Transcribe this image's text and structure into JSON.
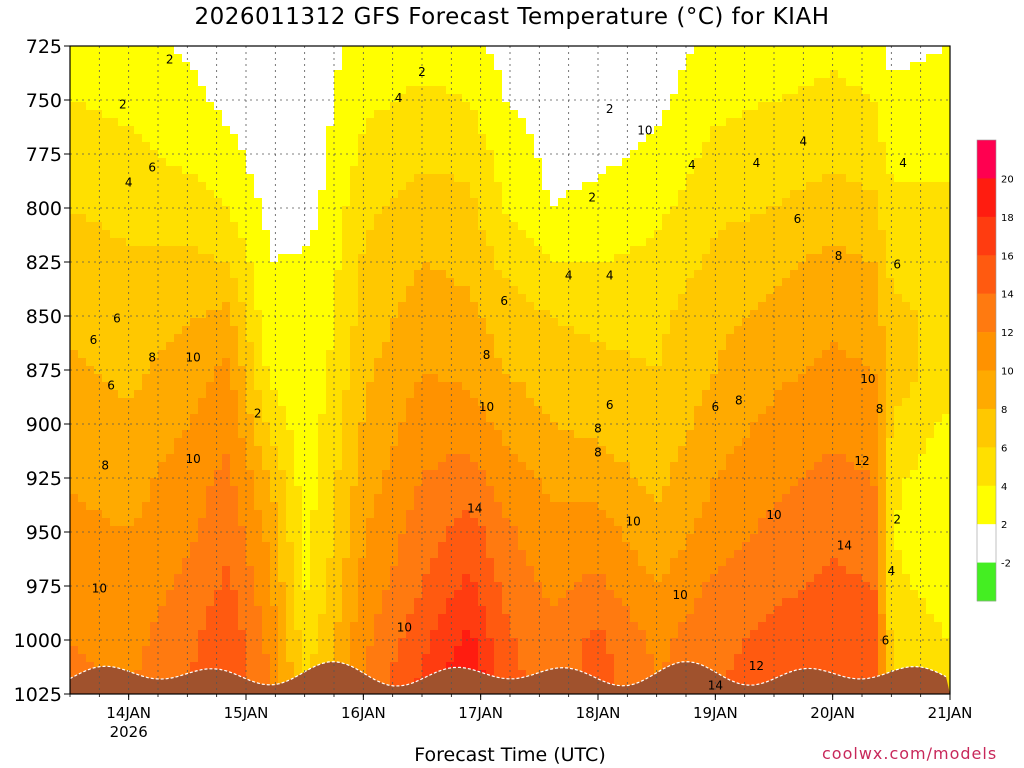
{
  "chart_data": {
    "type": "heatmap",
    "title": "2026011312 GFS Forecast Temperature (°C) for KIAH",
    "xlabel": "Forecast Time (UTC)",
    "ylabel": "Pressure (hPa)",
    "y_ticks": [
      725,
      750,
      775,
      800,
      825,
      850,
      875,
      900,
      925,
      950,
      975,
      1000,
      1025
    ],
    "ylim": [
      725,
      1025
    ],
    "x_range_days": [
      13.5,
      21.0
    ],
    "x_ticks": [
      {
        "day": 14,
        "label": "14JAN",
        "sub": "2026"
      },
      {
        "day": 15,
        "label": "15JAN",
        "sub": ""
      },
      {
        "day": 16,
        "label": "16JAN",
        "sub": ""
      },
      {
        "day": 17,
        "label": "17JAN",
        "sub": ""
      },
      {
        "day": 18,
        "label": "18JAN",
        "sub": ""
      },
      {
        "day": 19,
        "label": "19JAN",
        "sub": ""
      },
      {
        "day": 20,
        "label": "20JAN",
        "sub": ""
      },
      {
        "day": 21,
        "label": "21JAN",
        "sub": ""
      }
    ],
    "colorbar": {
      "levels": [
        -4,
        -2,
        2,
        4,
        6,
        8,
        10,
        12,
        14,
        16,
        18,
        20,
        22
      ],
      "labels": [
        "-2",
        "2",
        "4",
        "6",
        "8",
        "10",
        "12",
        "14",
        "16",
        "18",
        "20"
      ],
      "colors": [
        "#44ee22",
        "#ffffff",
        "#ffff00",
        "#ffe000",
        "#ffc800",
        "#ffaa00",
        "#ff9200",
        "#ff7a10",
        "#ff5a10",
        "#ff3c10",
        "#ff1c10",
        "#ff0050"
      ]
    },
    "temperature_profiles": [
      {
        "day": 13.5,
        "t": [
          3.5,
          4.0,
          5.0,
          6.0,
          6.8,
          7.5,
          8.3,
          9.0,
          9.8,
          10.5,
          11.2,
          12.0,
          12.5
        ]
      },
      {
        "day": 14.0,
        "t": [
          2.5,
          3.5,
          4.5,
          5.5,
          6.2,
          6.8,
          7.5,
          8.3,
          9.2,
          10.0,
          10.6,
          11.3,
          12.0
        ]
      },
      {
        "day": 14.5,
        "t": [
          1.8,
          2.5,
          3.5,
          5.0,
          6.5,
          7.8,
          9.0,
          10.0,
          11.0,
          11.5,
          12.5,
          13.5,
          14.0
        ]
      },
      {
        "day": 14.85,
        "t": [
          1.5,
          1.5,
          2.5,
          4.0,
          6.0,
          8.5,
          10.5,
          11.5,
          12.5,
          13.5,
          14.5,
          15.5,
          16.0
        ]
      },
      {
        "day": 15.2,
        "t": [
          0.0,
          0.5,
          1.0,
          1.5,
          2.0,
          2.5,
          3.5,
          5.5,
          8.0,
          9.5,
          10.5,
          11.5,
          12.0
        ]
      },
      {
        "day": 15.5,
        "t": [
          0.0,
          0.5,
          1.0,
          1.2,
          2.2,
          2.5,
          2.5,
          2.8,
          3.0,
          3.2,
          3.8,
          5.0,
          6.0
        ]
      },
      {
        "day": 15.7,
        "t": [
          1.5,
          1.8,
          2.0,
          2.5,
          3.0,
          3.5,
          4.0,
          4.5,
          5.0,
          5.5,
          6.0,
          7.0,
          8.0
        ]
      },
      {
        "day": 16.0,
        "t": [
          2.5,
          3.5,
          4.5,
          5.5,
          6.2,
          6.8,
          7.5,
          8.2,
          9.0,
          9.8,
          10.5,
          11.5,
          12.5
        ]
      },
      {
        "day": 16.5,
        "t": [
          3.0,
          4.5,
          5.5,
          7.0,
          8.0,
          9.0,
          10.0,
          11.0,
          12.0,
          13.0,
          14.0,
          15.5,
          16.5
        ]
      },
      {
        "day": 16.9,
        "t": [
          2.5,
          4.0,
          5.5,
          6.5,
          7.5,
          8.5,
          9.5,
          11.0,
          13.0,
          15.0,
          16.5,
          18.5,
          21.0
        ]
      },
      {
        "day": 17.2,
        "t": [
          1.5,
          2.0,
          3.0,
          4.0,
          5.5,
          7.0,
          8.0,
          9.5,
          11.0,
          12.5,
          13.5,
          14.5,
          15.0
        ]
      },
      {
        "day": 17.6,
        "t": [
          1.0,
          1.5,
          1.5,
          2.0,
          4.0,
          6.0,
          7.0,
          8.0,
          9.5,
          10.5,
          11.5,
          12.5,
          13.0
        ]
      },
      {
        "day": 18.0,
        "t": [
          0.5,
          1.0,
          1.5,
          2.5,
          4.0,
          5.5,
          6.5,
          7.5,
          9.0,
          11.0,
          12.5,
          14.5,
          15.0
        ]
      },
      {
        "day": 18.5,
        "t": [
          1.0,
          1.5,
          2.5,
          3.5,
          4.5,
          5.5,
          6.0,
          6.5,
          7.5,
          8.5,
          10.0,
          11.5,
          12.0
        ]
      },
      {
        "day": 19.0,
        "t": [
          2.5,
          3.5,
          4.5,
          5.5,
          6.5,
          7.5,
          8.0,
          9.0,
          10.0,
          11.0,
          12.5,
          13.5,
          14.0
        ]
      },
      {
        "day": 19.5,
        "t": [
          3.0,
          4.0,
          5.0,
          6.0,
          7.5,
          8.5,
          9.5,
          10.5,
          11.5,
          12.5,
          13.5,
          14.5,
          15.0
        ]
      },
      {
        "day": 20.0,
        "t": [
          3.5,
          4.5,
          5.5,
          7.0,
          8.5,
          9.5,
          10.5,
          11.5,
          12.5,
          13.5,
          14.5,
          15.5,
          16.0
        ]
      },
      {
        "day": 20.35,
        "t": [
          3.0,
          4.0,
          5.0,
          6.5,
          8.0,
          9.0,
          10.0,
          11.0,
          12.0,
          13.0,
          14.0,
          15.0,
          15.5
        ]
      },
      {
        "day": 20.5,
        "t": [
          1.5,
          2.5,
          3.5,
          4.5,
          5.5,
          6.5,
          7.0,
          6.0,
          4.5,
          4.0,
          4.5,
          5.5,
          6.0
        ]
      },
      {
        "day": 21.0,
        "t": [
          2.0,
          3.0,
          3.5,
          4.5,
          5.0,
          5.5,
          5.0,
          3.5,
          2.5,
          2.5,
          3.0,
          4.0,
          4.5
        ]
      }
    ],
    "contour_labels": [
      {
        "text": "2",
        "day": 14.35,
        "p": 733
      },
      {
        "text": "2",
        "day": 13.95,
        "p": 754
      },
      {
        "text": "6",
        "day": 14.2,
        "p": 783
      },
      {
        "text": "4",
        "day": 14.0,
        "p": 790
      },
      {
        "text": "2",
        "day": 16.5,
        "p": 739
      },
      {
        "text": "4",
        "day": 16.3,
        "p": 751
      },
      {
        "text": "2",
        "day": 18.1,
        "p": 756
      },
      {
        "text": "10",
        "day": 18.4,
        "p": 766
      },
      {
        "text": "2",
        "day": 15.1,
        "p": 897
      },
      {
        "text": "6",
        "day": 13.7,
        "p": 863
      },
      {
        "text": "6",
        "day": 13.9,
        "p": 853
      },
      {
        "text": "8",
        "day": 14.2,
        "p": 871
      },
      {
        "text": "10",
        "day": 14.55,
        "p": 871
      },
      {
        "text": "6",
        "day": 13.85,
        "p": 884
      },
      {
        "text": "8",
        "day": 13.8,
        "p": 921
      },
      {
        "text": "10",
        "day": 14.55,
        "p": 918
      },
      {
        "text": "10",
        "day": 13.75,
        "p": 978
      },
      {
        "text": "10",
        "day": 16.35,
        "p": 996
      },
      {
        "text": "6",
        "day": 17.2,
        "p": 845
      },
      {
        "text": "8",
        "day": 17.05,
        "p": 870
      },
      {
        "text": "10",
        "day": 17.05,
        "p": 894
      },
      {
        "text": "14",
        "day": 16.95,
        "p": 941
      },
      {
        "text": "8",
        "day": 18.0,
        "p": 904
      },
      {
        "text": "8",
        "day": 18.0,
        "p": 915
      },
      {
        "text": "6",
        "day": 18.1,
        "p": 893
      },
      {
        "text": "10",
        "day": 18.3,
        "p": 947
      },
      {
        "text": "4",
        "day": 17.75,
        "p": 833
      },
      {
        "text": "4",
        "day": 18.1,
        "p": 833
      },
      {
        "text": "2",
        "day": 17.95,
        "p": 797
      },
      {
        "text": "4",
        "day": 18.8,
        "p": 782
      },
      {
        "text": "4",
        "day": 19.35,
        "p": 781
      },
      {
        "text": "4",
        "day": 19.75,
        "p": 771
      },
      {
        "text": "6",
        "day": 19.7,
        "p": 807
      },
      {
        "text": "8",
        "day": 20.05,
        "p": 824
      },
      {
        "text": "6",
        "day": 20.55,
        "p": 828
      },
      {
        "text": "4",
        "day": 20.6,
        "p": 781
      },
      {
        "text": "6",
        "day": 19.0,
        "p": 894
      },
      {
        "text": "8",
        "day": 19.2,
        "p": 891
      },
      {
        "text": "10",
        "day": 20.3,
        "p": 881
      },
      {
        "text": "8",
        "day": 20.4,
        "p": 895
      },
      {
        "text": "12",
        "day": 20.25,
        "p": 919
      },
      {
        "text": "10",
        "day": 19.5,
        "p": 944
      },
      {
        "text": "14",
        "day": 20.1,
        "p": 958
      },
      {
        "text": "2",
        "day": 20.55,
        "p": 946
      },
      {
        "text": "4",
        "day": 20.5,
        "p": 970
      },
      {
        "text": "6",
        "day": 20.45,
        "p": 1002
      },
      {
        "text": "10",
        "day": 18.7,
        "p": 981
      },
      {
        "text": "12",
        "day": 19.35,
        "p": 1014
      },
      {
        "text": "14",
        "day": 19.0,
        "p": 1023
      }
    ]
  },
  "credit": "coolwx.com/models"
}
